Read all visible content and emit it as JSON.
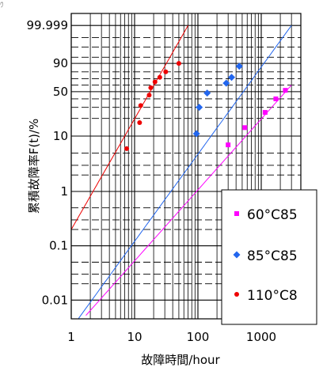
{
  "corner_mark": "ｳ",
  "chart_data": {
    "type": "scatter",
    "title": "",
    "xlabel": "故障時間/hour",
    "ylabel": "累積故障率F(t)/%",
    "x_scale": "log",
    "y_scale": "weibull",
    "xlim": [
      1,
      3000
    ],
    "ylim": [
      0.007,
      99.999
    ],
    "grid": true,
    "legend_position": "bottom-right",
    "x_tick_labels": [
      "1",
      "10",
      "100",
      "1000"
    ],
    "x_ticks": [
      1,
      10,
      100,
      1000
    ],
    "y_tick_labels": [
      "99.999",
      "90",
      "50",
      "10",
      "1",
      "0.1",
      "0.01"
    ],
    "y_ticks": [
      99.999,
      90,
      50,
      10,
      1,
      0.1,
      0.01
    ],
    "series": [
      {
        "name": "60°C85",
        "color": "#ff00ff",
        "marker": "square",
        "points": [
          [
            300,
            7
          ],
          [
            550,
            14
          ],
          [
            1150,
            25
          ],
          [
            1700,
            40
          ],
          [
            2400,
            52
          ]
        ],
        "fit_line": [
          [
            1,
            0.0026
          ],
          [
            3000,
            60
          ]
        ]
      },
      {
        "name": "85°C85",
        "color": "#2266ee",
        "marker": "diamond",
        "points": [
          [
            95,
            11
          ],
          [
            105,
            30
          ],
          [
            140,
            48
          ],
          [
            280,
            63
          ],
          [
            340,
            72
          ],
          [
            450,
            87
          ]
        ],
        "fit_line": [
          [
            1,
            0.003
          ],
          [
            3000,
            99.999
          ]
        ]
      },
      {
        "name": "110°C8",
        "color": "#ee0000",
        "marker": "circle",
        "points": [
          [
            7.5,
            6
          ],
          [
            12,
            17
          ],
          [
            12.5,
            32
          ],
          [
            17,
            45
          ],
          [
            18,
            56
          ],
          [
            21,
            65
          ],
          [
            25,
            72
          ],
          [
            31,
            80
          ],
          [
            50,
            90
          ]
        ],
        "fit_line": [
          [
            1,
            0.2
          ],
          [
            70,
            99.999
          ]
        ]
      }
    ]
  }
}
